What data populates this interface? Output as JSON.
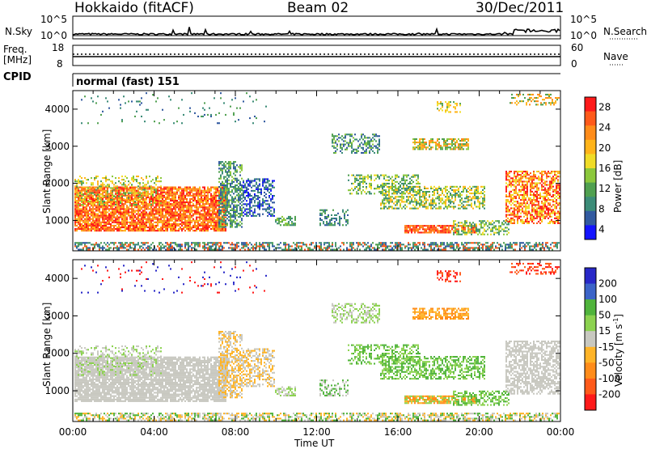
{
  "header": {
    "title": "Hokkaido (fitACF)",
    "beam": "Beam 02",
    "date": "30/Dec/2011"
  },
  "strips": {
    "nsky_label": "N.Sky",
    "nsearch_label": "N.Search",
    "freq_label": "Freq.",
    "freq_unit": "[MHz]",
    "nave_label": "Nave",
    "cpid_label": "CPID",
    "cpid_value": "normal (fast) 151",
    "left_ticks_top": [
      "10^5",
      "10^0"
    ],
    "right_ticks_top": [
      "10^5",
      "10^0"
    ],
    "left_ticks_freq": [
      "18",
      "8"
    ],
    "right_ticks_nave": [
      "60",
      "0"
    ]
  },
  "chart_data": [
    {
      "type": "heatmap",
      "title": "",
      "xlabel": "",
      "ylabel": "Slant Range [km]",
      "ylim": [
        180,
        4500
      ],
      "yticks": [
        "1000",
        "2000",
        "3000",
        "4000"
      ],
      "colorbar": {
        "label": "Power [dB]",
        "ticks": [
          "28",
          "24",
          "20",
          "16",
          "12",
          "8",
          "4"
        ],
        "colors": [
          "#ff1a1a",
          "#ff5a1a",
          "#ff8c1a",
          "#ffb41a",
          "#f0dc28",
          "#8cc83c",
          "#50a050",
          "#3c8c78",
          "#325aa0",
          "#1414ff"
        ]
      }
    },
    {
      "type": "heatmap",
      "title": "",
      "xlabel": "Time UT",
      "ylabel": "Slant Range [km]",
      "ylim": [
        180,
        4500
      ],
      "yticks": [
        "1000",
        "2000",
        "3000",
        "4000"
      ],
      "xticks": [
        "00:00",
        "04:00",
        "08:00",
        "12:00",
        "16:00",
        "20:00",
        "00:00"
      ],
      "colorbar": {
        "label": "Velocity [m s",
        "label_sup": "-1",
        "label_end": "]",
        "ticks": [
          "200",
          "100",
          "50",
          "15",
          "-15",
          "-50",
          "-100",
          "-200"
        ],
        "colors": [
          "#2828c8",
          "#3c64c8",
          "#50b43c",
          "#8cd250",
          "#c8c8c0",
          "#ffb428",
          "#ff8c1a",
          "#ff5a1a",
          "#ff1a1a"
        ]
      }
    }
  ]
}
